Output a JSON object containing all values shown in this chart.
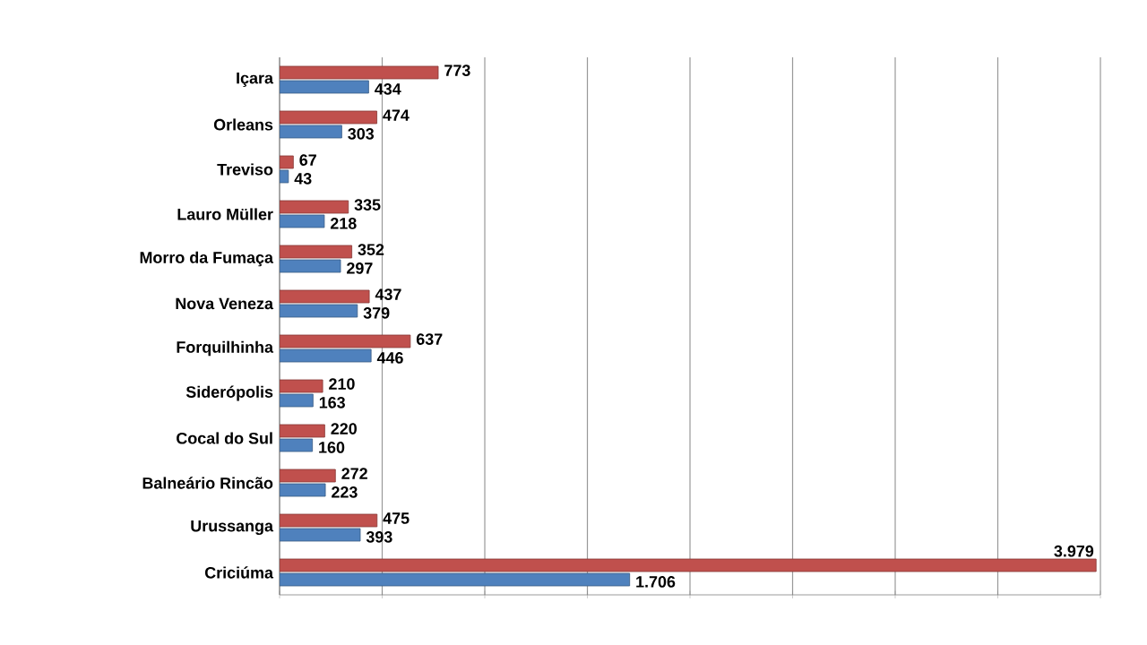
{
  "chart_data": {
    "type": "bar",
    "orientation": "horizontal",
    "categories": [
      "Içara",
      "Orleans",
      "Treviso",
      "Lauro Müller",
      "Morro da Fumaça",
      "Nova Veneza",
      "Forquilhinha",
      "Siderópolis",
      "Cocal do Sul",
      "Balneário Rincão",
      "Urussanga",
      "Criciúma"
    ],
    "series": [
      {
        "color": "#c0504d",
        "values": [
          773,
          474,
          67,
          335,
          352,
          437,
          637,
          210,
          220,
          272,
          475,
          3979
        ],
        "value_labels": [
          "773",
          "474",
          "67",
          "335",
          "352",
          "437",
          "637",
          "210",
          "220",
          "272",
          "475",
          "3.979"
        ]
      },
      {
        "color": "#4f81bd",
        "values": [
          434,
          303,
          43,
          218,
          297,
          379,
          446,
          163,
          160,
          223,
          393,
          1706
        ],
        "value_labels": [
          "434",
          "303",
          "43",
          "218",
          "297",
          "379",
          "446",
          "163",
          "160",
          "223",
          "393",
          "1.706"
        ]
      }
    ],
    "xlim": [
      0,
      4000
    ],
    "xticks": [
      {
        "value": 0,
        "label": null
      },
      {
        "value": 500,
        "label": null
      },
      {
        "value": 1000,
        "label": null
      },
      {
        "value": 1500,
        "label": null
      },
      {
        "value": 2000,
        "label": null
      },
      {
        "value": 2500,
        "label": null
      },
      {
        "value": 3000,
        "label": null
      },
      {
        "value": 3500,
        "label": null
      },
      {
        "value": 4000,
        "label": null
      }
    ],
    "grid": "x",
    "tick_labels": "y"
  }
}
